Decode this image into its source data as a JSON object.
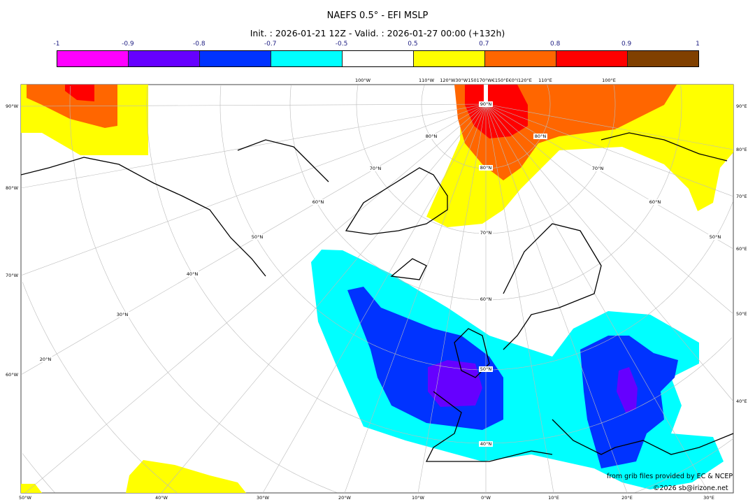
{
  "title": "NAEFS 0.5° - EFI MSLP",
  "subtitle": "Init. : 2026-01-21 12Z - Valid. : 2026-01-27 00:00 (+132h)",
  "legend": {
    "ticks": [
      "-1",
      "-0.9",
      "-0.8",
      "-0.7",
      "-0.5",
      "0.5",
      "0.7",
      "0.8",
      "0.9",
      "1"
    ],
    "colors": [
      "#ff00ff",
      "#6600ff",
      "#0033ff",
      "#00ffff",
      "#ffffff",
      "#ffff00",
      "#ff6600",
      "#ff0000",
      "#804000"
    ]
  },
  "map": {
    "left_labels": [
      "90°W",
      "80°W",
      "70°W",
      "60°W"
    ],
    "right_labels": [
      "90°E",
      "80°E",
      "70°E",
      "60°E",
      "50°E",
      "40°E"
    ],
    "bottom_labels": [
      "50°W",
      "40°W",
      "30°W",
      "20°W",
      "10°W",
      "0°W",
      "10°E",
      "20°E",
      "30°E"
    ],
    "top_labels": [
      "100°W",
      "110°W",
      "120°W30°W150170°W€150°E€0°I120°E",
      "110°E",
      "100°E"
    ],
    "lat_labels": [
      "90°N",
      "80°N",
      "70°N",
      "60°N",
      "50°N",
      "40°N",
      "80°N",
      "80°N",
      "70°N",
      "70°N",
      "60°N",
      "60°N",
      "50°N",
      "50°N",
      "40°N",
      "30°N",
      "20°N"
    ]
  },
  "credits": {
    "source": "from grib files provided by EC & NCEP",
    "copyright": "©2026 sb@irizone.net"
  }
}
